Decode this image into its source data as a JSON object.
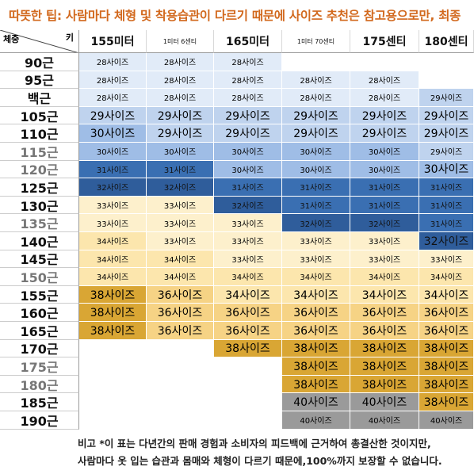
{
  "banner": "따뜻한 팁: 사람마다 체형 및 착용습관이 다르기 때문에 사이즈 추천은 참고용으로만, 최종",
  "corner": {
    "weight_label": "체중",
    "height_label": "키"
  },
  "columns": [
    {
      "label": "155미터",
      "small": false
    },
    {
      "label": "1미터 6센티",
      "small": true
    },
    {
      "label": "165미터",
      "small": false
    },
    {
      "label": "1미터 70센티",
      "small": true
    },
    {
      "label": "175센티",
      "small": false
    },
    {
      "label": "180센티",
      "small": false
    }
  ],
  "rows": [
    {
      "label": "90근",
      "dim": false,
      "cells": [
        "28사이즈",
        "28사이즈",
        "28사이즈",
        "",
        "",
        ""
      ]
    },
    {
      "label": "95근",
      "dim": false,
      "cells": [
        "28사이즈",
        "28사이즈",
        "28사이즈",
        "28사이즈",
        "28사이즈",
        ""
      ]
    },
    {
      "label": "백근",
      "dim": false,
      "cells": [
        "28사이즈",
        "28사이즈",
        "28사이즈",
        "28사이즈",
        "28사이즈",
        "29사이즈"
      ]
    },
    {
      "label": "105근",
      "dim": false,
      "cells": [
        "29사이즈",
        "29사이즈",
        "29사이즈",
        "29사이즈",
        "29사이즈",
        "29사이즈"
      ]
    },
    {
      "label": "110근",
      "dim": false,
      "cells": [
        "30사이즈",
        "29사이즈",
        "29사이즈",
        "29사이즈",
        "29사이즈",
        "29사이즈"
      ]
    },
    {
      "label": "115근",
      "dim": true,
      "cells": [
        "30사이즈",
        "30사이즈",
        "30사이즈",
        "30사이즈",
        "30사이즈",
        "29사이즈"
      ]
    },
    {
      "label": "120근",
      "dim": true,
      "cells": [
        "31사이즈",
        "31사이즈",
        "30사이즈",
        "30사이즈",
        "30사이즈",
        "30사이즈"
      ]
    },
    {
      "label": "125근",
      "dim": false,
      "cells": [
        "32사이즈",
        "32사이즈",
        "31사이즈",
        "31사이즈",
        "31사이즈",
        "31사이즈"
      ]
    },
    {
      "label": "130근",
      "dim": false,
      "cells": [
        "33사이즈",
        "33사이즈",
        "32사이즈",
        "31사이즈",
        "31사이즈",
        "31사이즈"
      ]
    },
    {
      "label": "135근",
      "dim": true,
      "cells": [
        "33사이즈",
        "33사이즈",
        "33사이즈",
        "32사이즈",
        "32사이즈",
        "31사이즈"
      ]
    },
    {
      "label": "140근",
      "dim": false,
      "cells": [
        "34사이즈",
        "33사이즈",
        "33사이즈",
        "33사이즈",
        "33사이즈",
        "32사이즈"
      ]
    },
    {
      "label": "145근",
      "dim": false,
      "cells": [
        "34사이즈",
        "34사이즈",
        "33사이즈",
        "33사이즈",
        "33사이즈",
        "33사이즈"
      ]
    },
    {
      "label": "150근",
      "dim": true,
      "cells": [
        "34사이즈",
        "34사이즈",
        "34사이즈",
        "34사이즈",
        "34사이즈",
        "34사이즈"
      ]
    },
    {
      "label": "155근",
      "dim": false,
      "cells": [
        "38사이즈",
        "36사이즈",
        "34사이즈",
        "34사이즈",
        "34사이즈",
        "34사이즈"
      ]
    },
    {
      "label": "160근",
      "dim": false,
      "cells": [
        "38사이즈",
        "36사이즈",
        "36사이즈",
        "36사이즈",
        "36사이즈",
        "36사이즈"
      ]
    },
    {
      "label": "165근",
      "dim": false,
      "cells": [
        "38사이즈",
        "36사이즈",
        "36사이즈",
        "36사이즈",
        "36사이즈",
        "36사이즈"
      ]
    },
    {
      "label": "170근",
      "dim": false,
      "cells": [
        "",
        "",
        "38사이즈",
        "38사이즈",
        "38사이즈",
        "38사이즈"
      ]
    },
    {
      "label": "175근",
      "dim": true,
      "cells": [
        "",
        "",
        "",
        "38사이즈",
        "38사이즈",
        "38사이즈"
      ]
    },
    {
      "label": "180근",
      "dim": true,
      "cells": [
        "",
        "",
        "",
        "38사이즈",
        "38사이즈",
        "38사이즈"
      ]
    },
    {
      "label": "185근",
      "dim": false,
      "cells": [
        "",
        "",
        "",
        "40사이즈",
        "40사이즈",
        "38사이즈"
      ]
    },
    {
      "label": "190근",
      "dim": false,
      "cells": [
        "",
        "",
        "",
        "40사이즈",
        "40사이즈",
        "40사이즈"
      ]
    }
  ],
  "size_colors": {
    "28": "#e1ebf8",
    "29": "#bfd3ee",
    "30": "#9fbde6",
    "31": "#3a6fb2",
    "32": "#2f5d9b",
    "33": "#fdf0cc",
    "34": "#fce6ad",
    "36": "#f6d385",
    "38": "#d9a634",
    "40": "#9a9a9a"
  },
  "footer": {
    "line1": "비고 *이 표는 다년간의 판매 경험과 소비자의 피드백에 근거하여 총결산한 것이지만,",
    "line2": "사람마다 옷 입는 습관과 몸매와 체형이 다르기 때문에,100%까지 보장할 수 없습니다."
  }
}
